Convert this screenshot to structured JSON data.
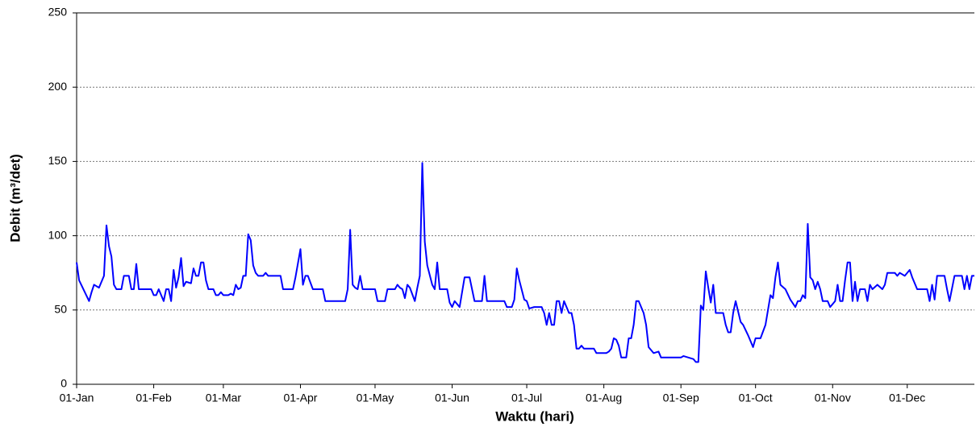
{
  "chart_data": {
    "type": "line",
    "xlabel": "Waktu (hari)",
    "ylabel": "Debit (m³/det)",
    "xlim": [
      0,
      361
    ],
    "xticks": [
      {
        "value": 0,
        "label": "01-Jan"
      },
      {
        "value": 31,
        "label": "01-Feb"
      },
      {
        "value": 59,
        "label": "01-Mar"
      },
      {
        "value": 90,
        "label": "01-Apr"
      },
      {
        "value": 120,
        "label": "01-May"
      },
      {
        "value": 151,
        "label": "01-Jun"
      },
      {
        "value": 181,
        "label": "01-Jul"
      },
      {
        "value": 212,
        "label": "01-Aug"
      },
      {
        "value": 243,
        "label": "01-Sep"
      },
      {
        "value": 273,
        "label": "01-Oct"
      },
      {
        "value": 304,
        "label": "01-Nov"
      },
      {
        "value": 334,
        "label": "01-Dec"
      }
    ],
    "ylim": [
      0,
      250
    ],
    "yticks": [
      0,
      50,
      100,
      150,
      200,
      250
    ],
    "grid": true,
    "series": [
      {
        "color": "#0000ff",
        "x": [
          0,
          1,
          3,
          5,
          6,
          7,
          9,
          11,
          12,
          13,
          14,
          15,
          16,
          18,
          19,
          21,
          22,
          23,
          24,
          25,
          30,
          31,
          32,
          33,
          34,
          35,
          36,
          37,
          38,
          39,
          40,
          41,
          42,
          43,
          44,
          46,
          47,
          48,
          49,
          50,
          51,
          52,
          53,
          55,
          56,
          57,
          58,
          59,
          61,
          62,
          63,
          64,
          65,
          66,
          67,
          68,
          69,
          70,
          71,
          72,
          73,
          75,
          76,
          77,
          82,
          83,
          87,
          88,
          90,
          91,
          92,
          93,
          95,
          99,
          100,
          108,
          109,
          110,
          111,
          112,
          113,
          114,
          115,
          120,
          121,
          124,
          125,
          128,
          129,
          130,
          131,
          132,
          133,
          134,
          136,
          137,
          138,
          139,
          140,
          141,
          143,
          144,
          145,
          146,
          149,
          150,
          151,
          152,
          154,
          156,
          158,
          160,
          163,
          164,
          165,
          172,
          173,
          175,
          176,
          177,
          178,
          180,
          181,
          182,
          184,
          187,
          188,
          189,
          190,
          191,
          192,
          193,
          194,
          195,
          196,
          198,
          199,
          200,
          201,
          202,
          203,
          204,
          208,
          209,
          213,
          214,
          215,
          216,
          217,
          218,
          219,
          221,
          222,
          223,
          224,
          225,
          226,
          228,
          229,
          230,
          232,
          234,
          235,
          243,
          244,
          246,
          248,
          249,
          250,
          251,
          252,
          253,
          254,
          255,
          256,
          257,
          260,
          261,
          262,
          263,
          264,
          265,
          267,
          268,
          270,
          272,
          273,
          275,
          277,
          279,
          280,
          281,
          282,
          283,
          285,
          287,
          289,
          290,
          291,
          292,
          293,
          294,
          295,
          296,
          297,
          298,
          299,
          300,
          302,
          303,
          305,
          306,
          307,
          308,
          309,
          310,
          311,
          312,
          313,
          314,
          315,
          317,
          318,
          319,
          320,
          322,
          324,
          325,
          326,
          329,
          330,
          331,
          333,
          335,
          336,
          338,
          342,
          343,
          344,
          345,
          346,
          349,
          350,
          351,
          353,
          356,
          357,
          358,
          359,
          360,
          361
        ],
        "values": [
          82,
          70,
          63,
          56,
          62,
          67,
          65,
          73,
          107,
          93,
          86,
          67,
          64,
          64,
          73,
          73,
          64,
          64,
          81,
          64,
          64,
          60,
          60,
          64,
          60,
          56,
          64,
          64,
          56,
          77,
          65,
          72,
          85,
          66,
          69,
          68,
          78,
          73,
          73,
          82,
          82,
          70,
          64,
          64,
          60,
          60,
          62,
          60,
          60,
          61,
          60,
          67,
          64,
          65,
          73,
          73,
          101,
          97,
          80,
          75,
          73,
          73,
          75,
          73,
          73,
          64,
          64,
          72,
          91,
          67,
          73,
          73,
          64,
          64,
          56,
          56,
          64,
          104,
          67,
          65,
          64,
          73,
          64,
          64,
          56,
          56,
          64,
          64,
          67,
          65,
          64,
          58,
          67,
          65,
          56,
          65,
          73,
          149,
          96,
          80,
          67,
          64,
          82,
          64,
          64,
          55,
          52,
          56,
          52,
          72,
          72,
          56,
          56,
          73,
          56,
          56,
          52,
          52,
          57,
          78,
          70,
          57,
          56,
          51,
          52,
          52,
          48,
          40,
          48,
          40,
          40,
          56,
          56,
          48,
          56,
          48,
          48,
          40,
          24,
          24,
          26,
          24,
          24,
          21,
          21,
          22,
          24,
          31,
          30,
          26,
          18,
          18,
          31,
          31,
          40,
          56,
          56,
          48,
          40,
          25,
          21,
          22,
          18,
          18,
          19,
          18,
          17,
          15,
          15,
          53,
          50,
          76,
          65,
          55,
          67,
          48,
          48,
          40,
          35,
          35,
          48,
          56,
          42,
          40,
          33,
          25,
          31,
          31,
          40,
          60,
          58,
          72,
          82,
          67,
          64,
          57,
          52,
          56,
          56,
          60,
          58,
          108,
          72,
          70,
          64,
          69,
          64,
          56,
          56,
          52,
          56,
          67,
          56,
          56,
          70,
          82,
          82,
          56,
          69,
          56,
          64,
          64,
          56,
          67,
          64,
          67,
          64,
          67,
          75,
          75,
          73,
          75,
          73,
          77,
          72,
          64,
          64,
          56,
          67,
          57,
          73,
          73,
          64,
          56,
          73,
          73,
          64,
          73,
          64,
          73,
          73
        ]
      }
    ]
  }
}
